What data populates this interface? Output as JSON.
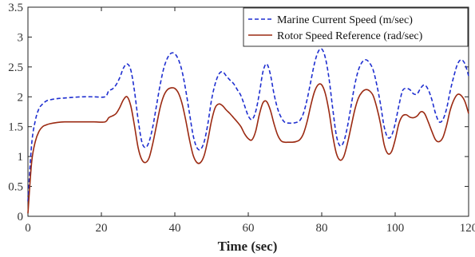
{
  "chart_data": {
    "type": "line",
    "title": "",
    "xlabel": "Time (sec)",
    "ylabel": "",
    "xlim": [
      0,
      120
    ],
    "ylim": [
      0,
      3.5
    ],
    "xticks": [
      0,
      20,
      40,
      60,
      80,
      100,
      120
    ],
    "yticks": [
      0,
      0.5,
      1,
      1.5,
      2,
      2.5,
      3,
      3.5
    ],
    "grid": false,
    "legend_position": "top-right",
    "series": [
      {
        "name": "Marine Current Speed (m/sec)",
        "color": "#1f2fd0",
        "style": "dashed",
        "x": [
          0,
          1,
          2,
          3,
          4,
          5,
          6,
          8,
          10,
          12,
          15,
          18,
          21,
          22,
          23,
          24,
          25,
          26,
          27,
          28,
          29,
          30,
          31,
          32,
          33,
          34,
          35,
          36,
          37,
          38,
          39,
          40,
          41,
          42,
          43,
          44,
          45,
          46,
          47,
          48,
          49,
          50,
          51,
          52,
          53,
          54,
          55,
          56,
          57,
          58,
          59,
          60,
          61,
          62,
          63,
          64,
          65,
          66,
          67,
          68,
          69,
          70,
          71,
          72,
          73,
          74,
          75,
          76,
          77,
          78,
          79,
          80,
          81,
          82,
          83,
          84,
          85,
          86,
          87,
          88,
          89,
          90,
          91,
          92,
          93,
          94,
          95,
          96,
          97,
          98,
          99,
          100,
          101,
          102,
          103,
          104,
          105,
          106,
          107,
          108,
          109,
          110,
          111,
          112,
          113,
          114,
          115,
          116,
          117,
          118,
          119,
          120
        ],
        "y": [
          0.25,
          1.2,
          1.6,
          1.8,
          1.88,
          1.93,
          1.95,
          1.97,
          1.98,
          1.99,
          2.0,
          2.0,
          2.0,
          2.1,
          2.13,
          2.2,
          2.32,
          2.48,
          2.55,
          2.45,
          2.1,
          1.62,
          1.25,
          1.15,
          1.25,
          1.5,
          1.85,
          2.2,
          2.48,
          2.65,
          2.73,
          2.72,
          2.62,
          2.42,
          2.1,
          1.72,
          1.35,
          1.15,
          1.12,
          1.25,
          1.55,
          1.95,
          2.22,
          2.38,
          2.42,
          2.35,
          2.28,
          2.22,
          2.12,
          2.02,
          1.85,
          1.68,
          1.62,
          1.75,
          2.05,
          2.42,
          2.55,
          2.38,
          2.05,
          1.8,
          1.65,
          1.57,
          1.56,
          1.56,
          1.57,
          1.6,
          1.72,
          1.95,
          2.25,
          2.55,
          2.75,
          2.8,
          2.65,
          2.3,
          1.8,
          1.35,
          1.18,
          1.25,
          1.5,
          1.85,
          2.2,
          2.45,
          2.58,
          2.62,
          2.57,
          2.45,
          2.2,
          1.88,
          1.5,
          1.32,
          1.35,
          1.55,
          1.85,
          2.1,
          2.14,
          2.12,
          2.05,
          2.05,
          2.15,
          2.2,
          2.12,
          1.95,
          1.72,
          1.58,
          1.62,
          1.8,
          2.1,
          2.35,
          2.55,
          2.62,
          2.55,
          2.35
        ]
      },
      {
        "name": "Rotor Speed Reference (rad/sec)",
        "color": "#9b2a12",
        "style": "solid",
        "x": [
          0,
          1,
          2,
          3,
          4,
          5,
          6,
          8,
          10,
          12,
          15,
          18,
          21,
          22,
          23,
          24,
          25,
          26,
          27,
          28,
          29,
          30,
          31,
          32,
          33,
          34,
          35,
          36,
          37,
          38,
          39,
          40,
          41,
          42,
          43,
          44,
          45,
          46,
          47,
          48,
          49,
          50,
          51,
          52,
          53,
          54,
          55,
          56,
          57,
          58,
          59,
          60,
          61,
          62,
          63,
          64,
          65,
          66,
          67,
          68,
          69,
          70,
          71,
          72,
          73,
          74,
          75,
          76,
          77,
          78,
          79,
          80,
          81,
          82,
          83,
          84,
          85,
          86,
          87,
          88,
          89,
          90,
          91,
          92,
          93,
          94,
          95,
          96,
          97,
          98,
          99,
          100,
          101,
          102,
          103,
          104,
          105,
          106,
          107,
          108,
          109,
          110,
          111,
          112,
          113,
          114,
          115,
          116,
          117,
          118,
          119,
          120
        ],
        "y": [
          0.05,
          0.9,
          1.25,
          1.42,
          1.5,
          1.53,
          1.55,
          1.57,
          1.58,
          1.58,
          1.58,
          1.58,
          1.58,
          1.65,
          1.68,
          1.72,
          1.82,
          1.95,
          2.0,
          1.85,
          1.52,
          1.15,
          0.95,
          0.9,
          0.98,
          1.22,
          1.52,
          1.82,
          2.02,
          2.12,
          2.15,
          2.14,
          2.06,
          1.88,
          1.6,
          1.28,
          1.02,
          0.9,
          0.9,
          1.02,
          1.28,
          1.6,
          1.82,
          1.88,
          1.85,
          1.78,
          1.72,
          1.65,
          1.58,
          1.5,
          1.38,
          1.3,
          1.28,
          1.42,
          1.7,
          1.9,
          1.92,
          1.78,
          1.55,
          1.36,
          1.26,
          1.24,
          1.24,
          1.24,
          1.25,
          1.28,
          1.38,
          1.58,
          1.85,
          2.08,
          2.2,
          2.2,
          2.05,
          1.75,
          1.35,
          1.05,
          0.94,
          1.0,
          1.22,
          1.5,
          1.78,
          1.98,
          2.08,
          2.12,
          2.1,
          2.02,
          1.82,
          1.55,
          1.2,
          1.05,
          1.08,
          1.28,
          1.55,
          1.68,
          1.7,
          1.66,
          1.65,
          1.68,
          1.75,
          1.72,
          1.58,
          1.42,
          1.28,
          1.25,
          1.32,
          1.52,
          1.78,
          1.95,
          2.04,
          2.02,
          1.92,
          1.72
        ]
      }
    ]
  }
}
